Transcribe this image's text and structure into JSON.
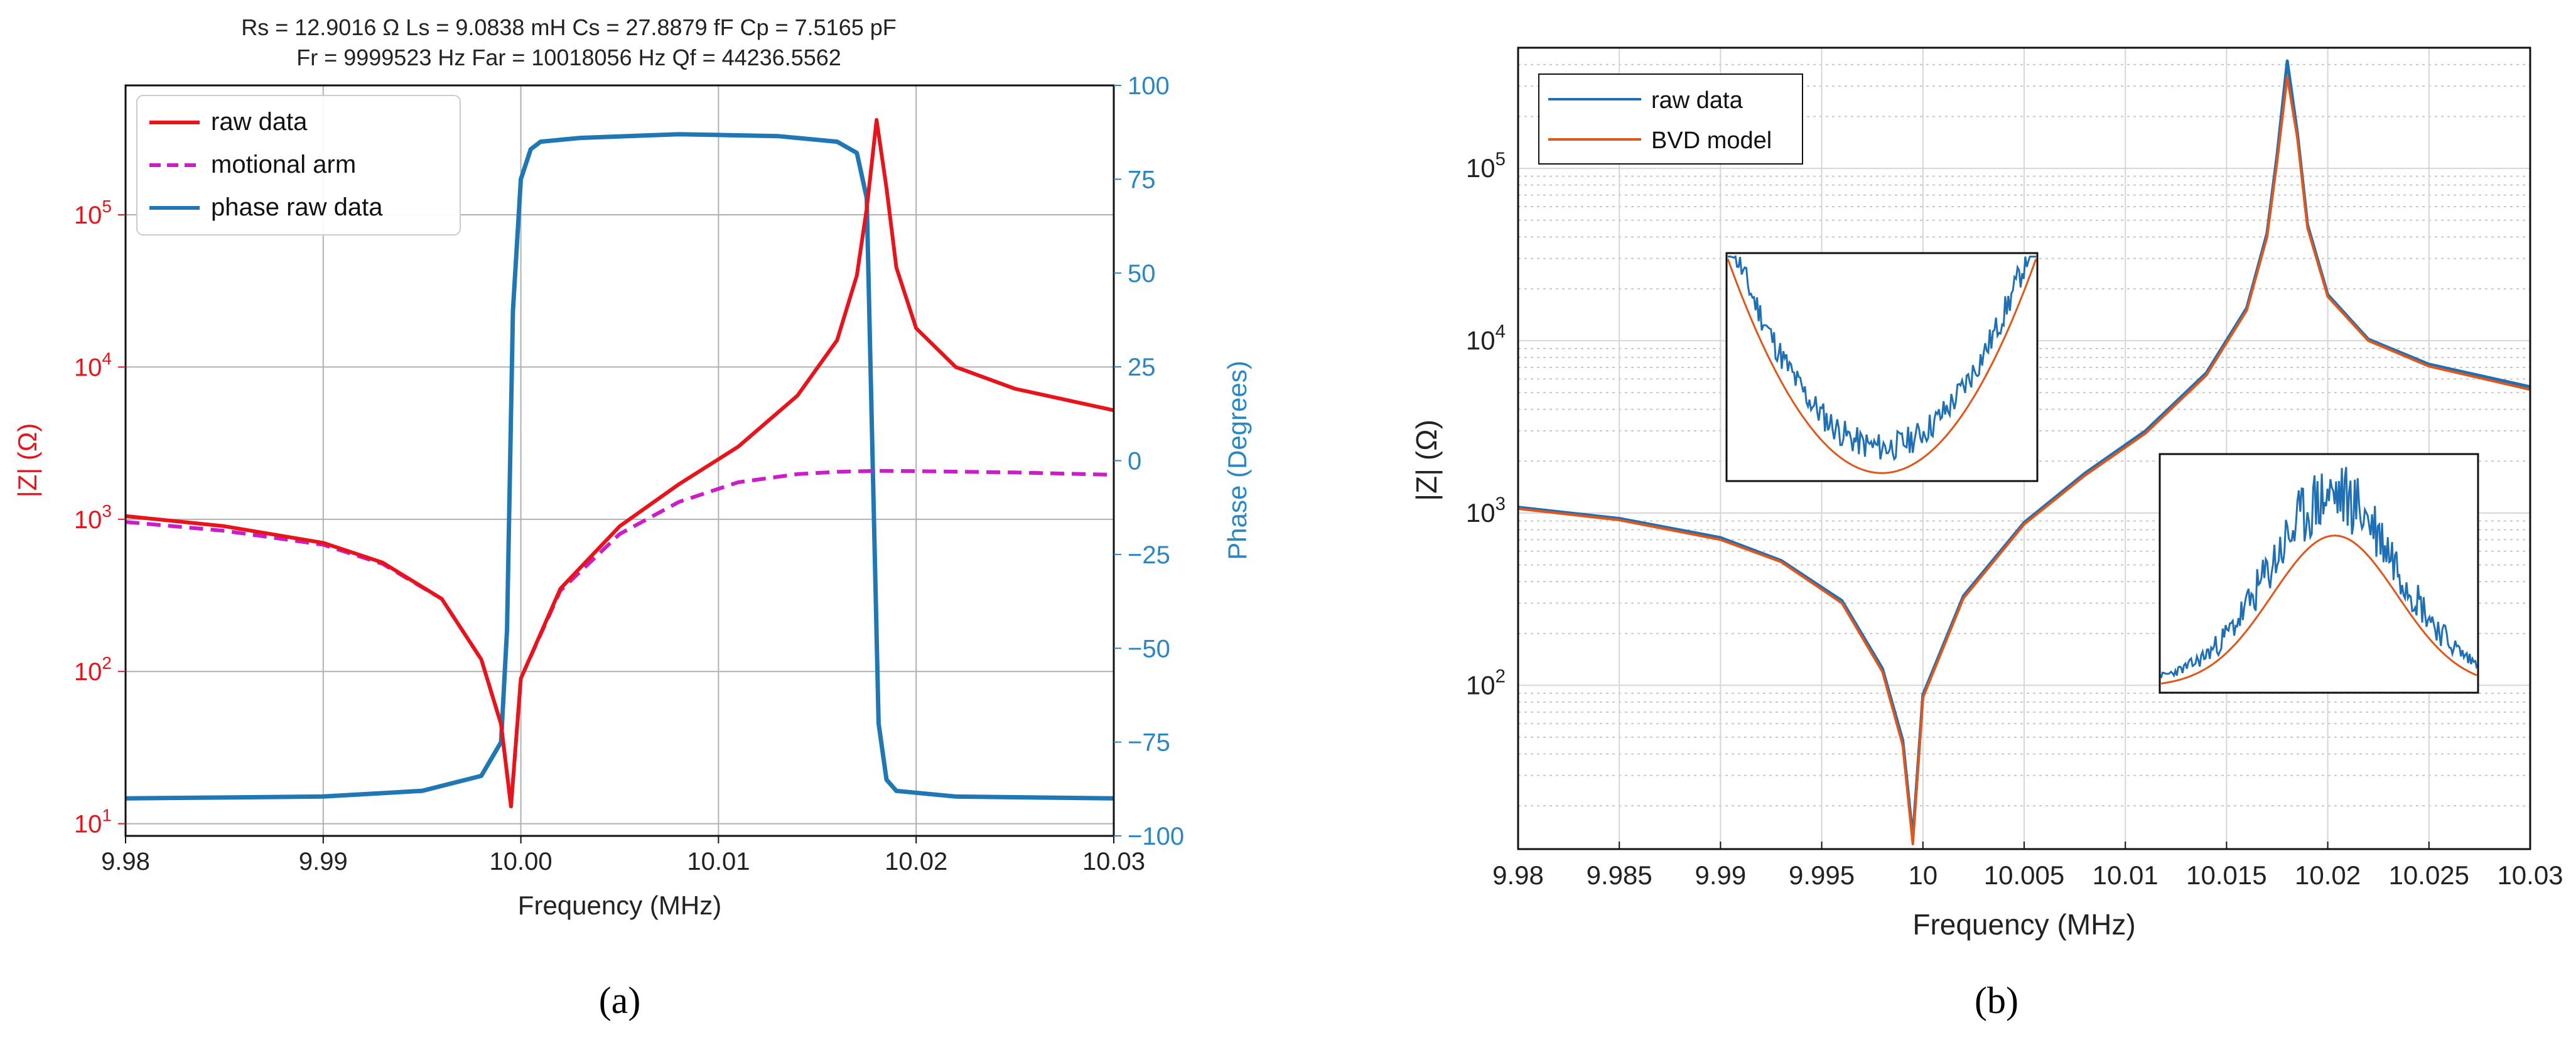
{
  "chart_data": [
    {
      "panel_label": "(a)",
      "type": "line",
      "header": {
        "line1": "Rs = 12.9016 Ω    Ls = 9.0838 mH    Cs = 27.8879 fF    Cp = 7.5165 pF",
        "line2": "Fr = 9999523 Hz   Far = 10018056 Hz   Qf = 44236.5562"
      },
      "xlabel": "Frequency (MHz)",
      "ylabel_left": "|Z| (Ω)",
      "ylabel_right": "Phase (Degrees)",
      "xlim": [
        9.98,
        10.03
      ],
      "ylim_left_log10": [
        0.92,
        5.85
      ],
      "ylim_right": [
        -100,
        100
      ],
      "x_ticks": [
        "9.98",
        "9.99",
        "10.00",
        "10.01",
        "10.02",
        "10.03"
      ],
      "y_left_ticks": [
        {
          "base": "10",
          "exp": "1",
          "value": 10
        },
        {
          "base": "10",
          "exp": "2",
          "value": 100
        },
        {
          "base": "10",
          "exp": "3",
          "value": 1000
        },
        {
          "base": "10",
          "exp": "4",
          "value": 10000
        },
        {
          "base": "10",
          "exp": "5",
          "value": 100000
        }
      ],
      "y_right_ticks": [
        "100",
        "75",
        "50",
        "25",
        "0",
        "−25",
        "−50",
        "−75",
        "−100"
      ],
      "grid": true,
      "legend_position": "top-left",
      "series": [
        {
          "name": "raw data",
          "color": "#e8141c",
          "style": "solid",
          "axis": "left",
          "x": [
            9.98,
            9.985,
            9.99,
            9.993,
            9.996,
            9.998,
            9.999,
            9.9995,
            10.0,
            10.002,
            10.005,
            10.008,
            10.011,
            10.014,
            10.016,
            10.017,
            10.0175,
            10.018,
            10.0185,
            10.019,
            10.02,
            10.022,
            10.025,
            10.03
          ],
          "values": [
            1050,
            900,
            700,
            520,
            300,
            120,
            45,
            13,
            90,
            350,
            900,
            1700,
            3000,
            6500,
            15000,
            40000,
            110000,
            420000,
            150000,
            45000,
            18000,
            10000,
            7200,
            5200
          ]
        },
        {
          "name": "motional arm",
          "color": "#cc1ec8",
          "style": "dashed",
          "axis": "left",
          "x": [
            9.98,
            9.985,
            9.99,
            9.993,
            9.996,
            9.998,
            9.999,
            9.9995,
            10.0,
            10.002,
            10.005,
            10.008,
            10.011,
            10.014,
            10.016,
            10.018,
            10.02,
            10.025,
            10.03
          ],
          "values": [
            960,
            840,
            680,
            510,
            300,
            120,
            45,
            13,
            90,
            340,
            800,
            1300,
            1750,
            1980,
            2050,
            2080,
            2070,
            2030,
            1960
          ]
        },
        {
          "name": "phase raw data",
          "color": "#1f77b4",
          "style": "solid",
          "axis": "right",
          "x": [
            9.98,
            9.99,
            9.995,
            9.998,
            9.999,
            9.9993,
            9.9996,
            10.0,
            10.0005,
            10.001,
            10.003,
            10.008,
            10.013,
            10.016,
            10.017,
            10.0175,
            10.0178,
            10.0181,
            10.0185,
            10.019,
            10.022,
            10.03
          ],
          "values": [
            -90,
            -89.5,
            -88,
            -84,
            -75,
            -45,
            40,
            75,
            83,
            85,
            86,
            87,
            86.5,
            85,
            82,
            70,
            0,
            -70,
            -85,
            -88,
            -89.5,
            -90
          ]
        }
      ]
    },
    {
      "panel_label": "(b)",
      "type": "line",
      "xlabel": "Frequency (MHz)",
      "ylabel": "|Z| (Ω)",
      "xlim": [
        9.98,
        10.03
      ],
      "ylim_log10": [
        1.05,
        5.7
      ],
      "x_ticks": [
        "9.98",
        "9.985",
        "9.99",
        "9.995",
        "10",
        "10.005",
        "10.01",
        "10.015",
        "10.02",
        "10.025",
        "10.03"
      ],
      "y_ticks": [
        {
          "base": "10",
          "exp": "2",
          "value": 100
        },
        {
          "base": "10",
          "exp": "3",
          "value": 1000
        },
        {
          "base": "10",
          "exp": "4",
          "value": 10000
        },
        {
          "base": "10",
          "exp": "5",
          "value": 100000
        }
      ],
      "grid": "major and minor (dotted)",
      "legend_position": "top-left",
      "insets": [
        "zoom near resonance minimum",
        "zoom near anti-resonance peak"
      ],
      "series": [
        {
          "name": "raw data",
          "color": "#1f6fb4",
          "style": "solid",
          "x": [
            9.98,
            9.985,
            9.99,
            9.993,
            9.996,
            9.998,
            9.999,
            9.9995,
            10.0,
            10.002,
            10.005,
            10.008,
            10.011,
            10.014,
            10.016,
            10.017,
            10.0175,
            10.018,
            10.0185,
            10.019,
            10.02,
            10.022,
            10.025,
            10.03
          ],
          "values": [
            1080,
            930,
            720,
            530,
            310,
            125,
            48,
            13,
            88,
            330,
            880,
            1700,
            3000,
            6500,
            15500,
            42000,
            120000,
            420000,
            160000,
            47000,
            18500,
            10200,
            7300,
            5400
          ]
        },
        {
          "name": "BVD model",
          "color": "#e0561b",
          "style": "solid",
          "x": [
            9.98,
            9.985,
            9.99,
            9.993,
            9.996,
            9.998,
            9.999,
            9.9995,
            10.0,
            10.002,
            10.005,
            10.008,
            10.011,
            10.014,
            10.016,
            10.017,
            10.0175,
            10.018,
            10.0185,
            10.019,
            10.02,
            10.022,
            10.025,
            10.03
          ],
          "values": [
            1060,
            910,
            700,
            520,
            300,
            120,
            45,
            12,
            85,
            320,
            860,
            1650,
            2900,
            6300,
            15000,
            40000,
            110000,
            340000,
            150000,
            45000,
            18000,
            10000,
            7100,
            5200
          ]
        }
      ]
    }
  ]
}
